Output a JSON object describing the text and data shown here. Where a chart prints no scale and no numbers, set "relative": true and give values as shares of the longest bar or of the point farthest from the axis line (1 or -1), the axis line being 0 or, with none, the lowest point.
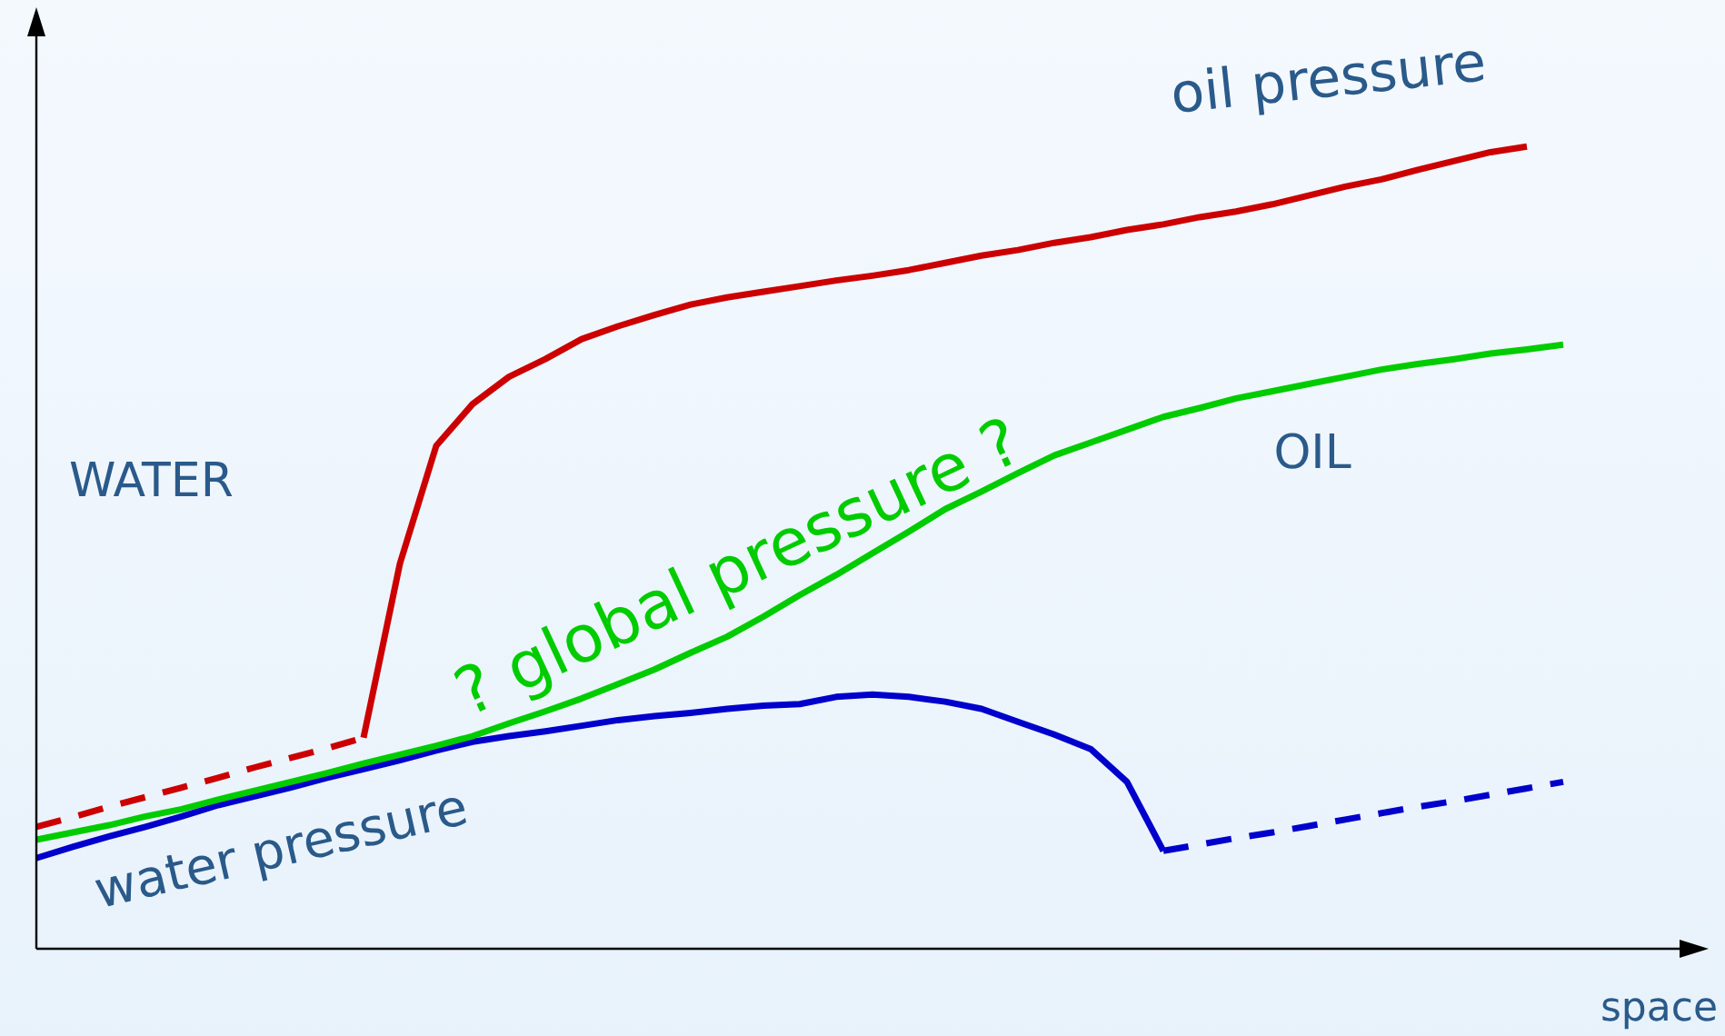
{
  "chart_data": {
    "type": "line",
    "relative": true,
    "xlabel": "space",
    "legend": false,
    "annotations": [
      "WATER",
      "OIL"
    ],
    "categories": [
      null,
      null,
      null,
      null,
      null,
      null,
      null,
      null,
      null,
      null,
      null,
      null,
      null,
      null,
      null,
      null,
      null,
      null,
      null,
      null,
      null,
      null,
      null,
      null,
      null,
      null,
      null,
      null,
      null,
      null,
      null,
      null,
      null,
      null,
      null,
      null,
      null,
      null,
      null,
      null,
      null,
      null,
      null,
      null,
      null,
      null
    ],
    "series": [
      {
        "color": "#cc0000",
        "line_style": "dashed",
        "values": [
          0.152,
          0.164,
          0.177,
          0.189,
          0.201,
          0.213,
          0.226,
          0.238,
          0.25,
          0.263,
          null,
          null,
          null,
          null,
          null,
          null,
          null,
          null,
          null,
          null,
          null,
          null,
          null,
          null,
          null,
          null,
          null,
          null,
          null,
          null,
          null,
          null,
          null,
          null,
          null,
          null,
          null,
          null,
          null,
          null,
          null,
          null,
          null,
          null,
          null,
          null
        ]
      },
      {
        "name": "oil pressure",
        "color": "#cc0000",
        "values": [
          null,
          null,
          null,
          null,
          null,
          null,
          null,
          null,
          null,
          0.263,
          0.48,
          0.627,
          0.679,
          0.713,
          0.735,
          0.76,
          0.776,
          0.79,
          0.803,
          0.812,
          0.819,
          0.826,
          0.833,
          0.839,
          0.846,
          0.855,
          0.864,
          0.871,
          0.88,
          0.887,
          0.896,
          0.903,
          0.912,
          0.919,
          0.928,
          0.939,
          0.95,
          0.959,
          0.971,
          0.982,
          0.993,
          1,
          null,
          null,
          null,
          null
        ]
      },
      {
        "name": "? global pressure ?",
        "color": "#00cc00",
        "values": [
          0.136,
          0.145,
          0.154,
          0.165,
          0.174,
          0.186,
          0.197,
          0.208,
          0.219,
          0.231,
          0.242,
          0.253,
          0.265,
          0.281,
          0.296,
          0.312,
          0.33,
          0.348,
          0.369,
          0.389,
          0.414,
          0.441,
          0.466,
          0.493,
          0.52,
          0.548,
          0.57,
          0.593,
          0.615,
          0.631,
          0.647,
          0.663,
          0.674,
          0.686,
          0.695,
          0.704,
          0.713,
          0.722,
          0.729,
          0.735,
          0.742,
          0.747,
          0.753,
          null,
          null,
          null
        ]
      },
      {
        "name": "water pressure",
        "color": "#0000cc",
        "values": [
          0.113,
          0.127,
          0.14,
          0.152,
          0.165,
          0.179,
          0.19,
          0.201,
          0.213,
          0.224,
          0.235,
          0.247,
          0.258,
          0.265,
          0.271,
          0.278,
          0.285,
          0.29,
          0.294,
          0.299,
          0.303,
          0.305,
          0.314,
          0.317,
          0.314,
          0.308,
          0.299,
          0.283,
          0.267,
          0.249,
          0.208,
          0.122,
          null,
          null,
          null,
          null,
          null,
          null,
          null,
          null,
          null,
          null,
          null,
          null,
          null,
          null
        ]
      },
      {
        "color": "#0000cc",
        "line_style": "dashed",
        "values": [
          null,
          null,
          null,
          null,
          null,
          null,
          null,
          null,
          null,
          null,
          null,
          null,
          null,
          null,
          null,
          null,
          null,
          null,
          null,
          null,
          null,
          null,
          null,
          null,
          null,
          null,
          null,
          null,
          null,
          null,
          null,
          0.122,
          0.13,
          0.138,
          0.145,
          0.153,
          0.161,
          0.169,
          0.177,
          0.184,
          0.192,
          0.2,
          0.208,
          null,
          null,
          null
        ]
      }
    ]
  }
}
